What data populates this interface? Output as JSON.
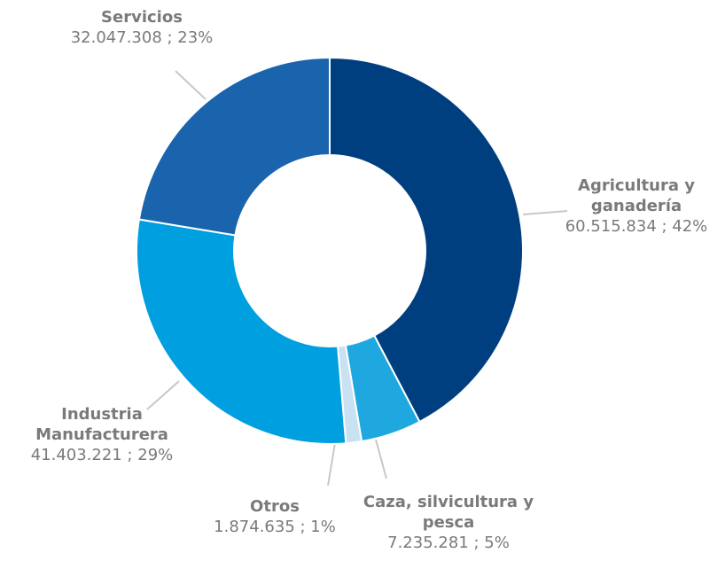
{
  "chart_data": {
    "type": "donut",
    "categories": [
      "Agricultura y ganadería",
      "Caza, silvicultura y pesca",
      "Otros",
      "Industria Manufacturera",
      "Servicios"
    ],
    "values": [
      60515834,
      7235281,
      1874635,
      41403221,
      32047308
    ],
    "value_labels": [
      "60.515.834 ; 42%",
      "7.235.281 ; 5%",
      "1.874.635 ; 1%",
      "41.403.221 ; 29%",
      "32.047.308 ; 23%"
    ],
    "colors": [
      "#003f7f",
      "#1fa8e0",
      "#c9e2f3",
      "#009fe0",
      "#1a63ad"
    ]
  }
}
